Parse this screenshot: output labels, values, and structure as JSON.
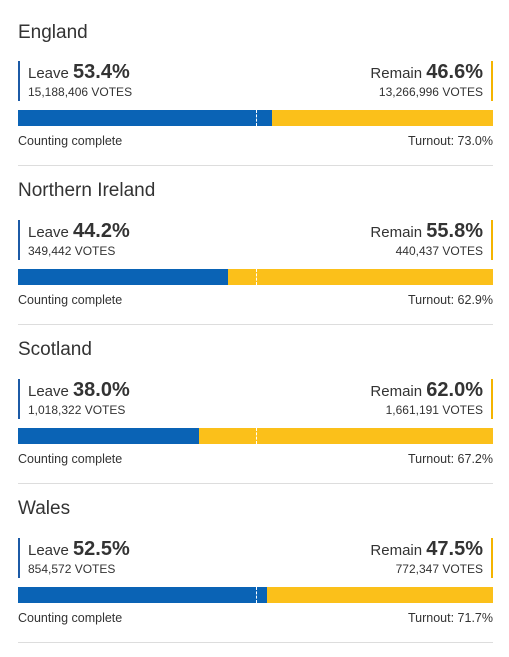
{
  "chart_data": [
    {
      "type": "bar",
      "region": "England",
      "leave_label": "Leave",
      "leave_pct": "53.4%",
      "leave_value": 53.4,
      "leave_votes": "15,188,406 VOTES",
      "remain_label": "Remain",
      "remain_pct": "46.6%",
      "remain_value": 46.6,
      "remain_votes": "13,266,996 VOTES",
      "status": "Counting complete",
      "turnout": "Turnout: 73.0%"
    },
    {
      "type": "bar",
      "region": "Northern Ireland",
      "leave_label": "Leave",
      "leave_pct": "44.2%",
      "leave_value": 44.2,
      "leave_votes": "349,442 VOTES",
      "remain_label": "Remain",
      "remain_pct": "55.8%",
      "remain_value": 55.8,
      "remain_votes": "440,437 VOTES",
      "status": "Counting complete",
      "turnout": "Turnout: 62.9%"
    },
    {
      "type": "bar",
      "region": "Scotland",
      "leave_label": "Leave",
      "leave_pct": "38.0%",
      "leave_value": 38.0,
      "leave_votes": "1,018,322 VOTES",
      "remain_label": "Remain",
      "remain_pct": "62.0%",
      "remain_value": 62.0,
      "remain_votes": "1,661,191 VOTES",
      "status": "Counting complete",
      "turnout": "Turnout: 67.2%"
    },
    {
      "type": "bar",
      "region": "Wales",
      "leave_label": "Leave",
      "leave_pct": "52.5%",
      "leave_value": 52.5,
      "leave_votes": "854,572 VOTES",
      "remain_label": "Remain",
      "remain_pct": "47.5%",
      "remain_value": 47.5,
      "remain_votes": "772,347 VOTES",
      "status": "Counting complete",
      "turnout": "Turnout: 71.7%"
    }
  ],
  "colors": {
    "leave": "#0a63b5",
    "remain": "#fbc01a"
  }
}
